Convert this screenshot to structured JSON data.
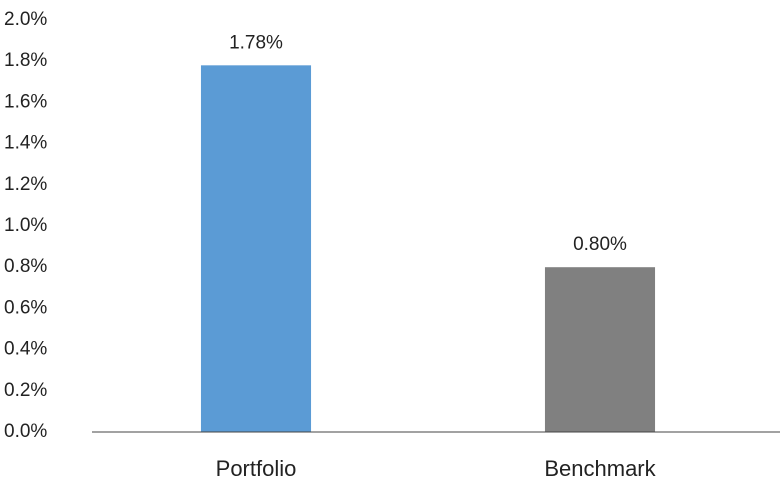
{
  "chart_data": {
    "type": "bar",
    "categories": [
      "Portfolio",
      "Benchmark"
    ],
    "values": [
      1.78,
      0.8
    ],
    "value_labels": [
      "1.78%",
      "0.80%"
    ],
    "colors": [
      "#5b9bd5",
      "#808080"
    ],
    "ylim": [
      0,
      2
    ],
    "yticks": [
      {
        "value": 0,
        "label": "0.0%"
      },
      {
        "value": 0.2,
        "label": "0.2%"
      },
      {
        "value": 0.4,
        "label": "0.4%"
      },
      {
        "value": 0.6,
        "label": "0.6%"
      },
      {
        "value": 0.8,
        "label": "0.8%"
      },
      {
        "value": 1,
        "label": "1.0%"
      },
      {
        "value": 1.2,
        "label": "1.2%"
      },
      {
        "value": 1.4,
        "label": "1.4%"
      },
      {
        "value": 1.6,
        "label": "1.6%"
      },
      {
        "value": 1.8,
        "label": "1.8%"
      },
      {
        "value": 2,
        "label": "2.0%"
      }
    ],
    "grid": false
  }
}
